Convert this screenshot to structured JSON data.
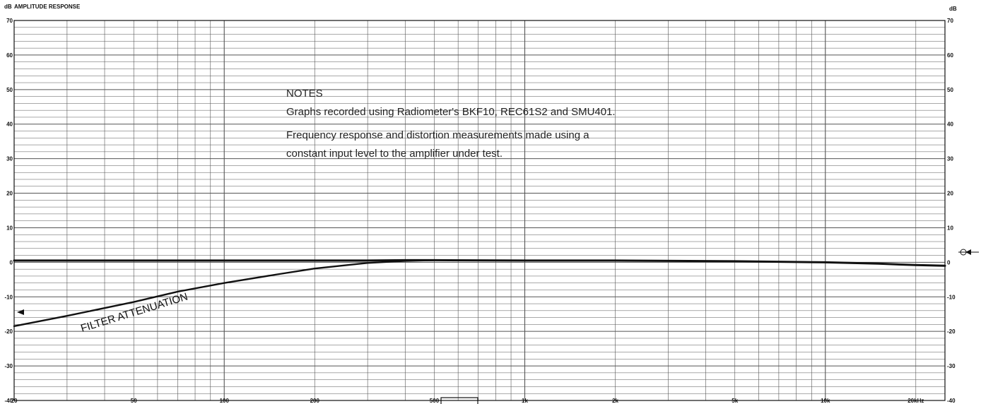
{
  "chart_data": {
    "type": "line",
    "title": "AMPLITUDE RESPONSE",
    "y_unit_left": "dB",
    "y_unit_right": "dB",
    "xscale": "log",
    "xlim": [
      20,
      25000
    ],
    "ylim": [
      -40,
      70
    ],
    "grid": true,
    "x_ticks": [
      {
        "value": 20,
        "label": "20"
      },
      {
        "value": 50,
        "label": "50"
      },
      {
        "value": 100,
        "label": "100"
      },
      {
        "value": 200,
        "label": "200"
      },
      {
        "value": 500,
        "label": "500"
      },
      {
        "value": 1000,
        "label": "1k"
      },
      {
        "value": 2000,
        "label": "2k"
      },
      {
        "value": 5000,
        "label": "5k"
      },
      {
        "value": 10000,
        "label": "10k"
      },
      {
        "value": 20000,
        "label": "20kHz"
      }
    ],
    "y_ticks": [
      {
        "value": 70,
        "label": "70"
      },
      {
        "value": 60,
        "label": "60"
      },
      {
        "value": 50,
        "label": "50"
      },
      {
        "value": 40,
        "label": "40"
      },
      {
        "value": 30,
        "label": "30"
      },
      {
        "value": 20,
        "label": "20"
      },
      {
        "value": 10,
        "label": "10"
      },
      {
        "value": 0,
        "label": "0"
      },
      {
        "value": -10,
        "label": "-10"
      },
      {
        "value": -20,
        "label": "-20"
      },
      {
        "value": -30,
        "label": "-30"
      },
      {
        "value": -40,
        "label": "-40"
      }
    ],
    "series": [
      {
        "x": [
          20,
          30,
          50,
          70,
          100,
          150,
          200,
          300,
          400,
          500,
          1000,
          2000,
          5000,
          10000,
          15000,
          20000,
          25000
        ],
        "y": [
          0.5,
          0.5,
          0.5,
          0.5,
          0.5,
          0.5,
          0.5,
          0.5,
          0.6,
          0.6,
          0.5,
          0.5,
          0.3,
          0.0,
          -0.4,
          -0.8,
          -1.0
        ]
      },
      {
        "x": [
          20,
          30,
          50,
          70,
          100,
          150,
          200,
          300,
          400,
          500
        ],
        "y": [
          -18.5,
          -15.5,
          -11.5,
          -8.5,
          -6.0,
          -3.5,
          -1.8,
          -0.2,
          0.4,
          0.6
        ]
      }
    ],
    "annotations": [
      {
        "text": "FILTER ATTENUATION"
      },
      {
        "text": "NOTES"
      },
      {
        "text": "Graphs recorded using Radiometer's BKF10, REC61S2 and SMU401."
      },
      {
        "text": "Frequency response and distortion measurements made using a"
      },
      {
        "text": "constant input level to the amplifier under test."
      }
    ]
  },
  "colors": {
    "grid": "#555555",
    "trace": "#111111",
    "paper": "#ffffff"
  }
}
